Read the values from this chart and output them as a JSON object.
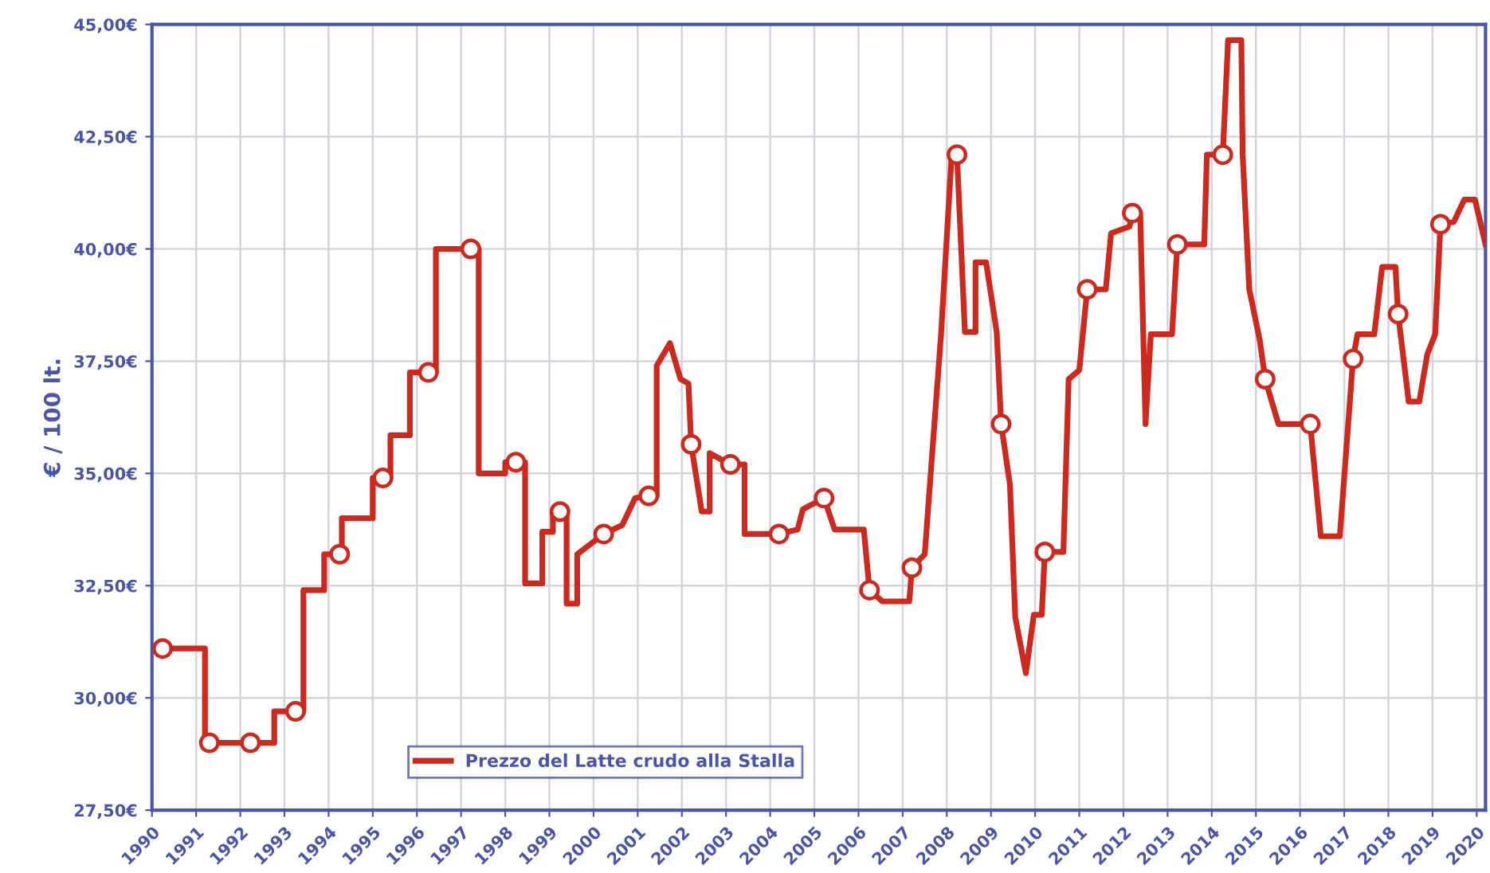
{
  "chart_data": {
    "type": "line",
    "ylabel": "€ / 100 lt.",
    "xlim": [
      1990,
      2020.2
    ],
    "ylim": [
      27.5,
      45
    ],
    "xticks": [
      {
        "value": 1990,
        "label": "1990"
      },
      {
        "value": 1991,
        "label": "1991"
      },
      {
        "value": 1992,
        "label": "1992"
      },
      {
        "value": 1993,
        "label": "1993"
      },
      {
        "value": 1994,
        "label": "1994"
      },
      {
        "value": 1995,
        "label": "1995"
      },
      {
        "value": 1996,
        "label": "1996"
      },
      {
        "value": 1997,
        "label": "1997"
      },
      {
        "value": 1998,
        "label": "1998"
      },
      {
        "value": 1999,
        "label": "1999"
      },
      {
        "value": 2000,
        "label": "2000"
      },
      {
        "value": 2001,
        "label": "2001"
      },
      {
        "value": 2002,
        "label": "2002"
      },
      {
        "value": 2003,
        "label": "2003"
      },
      {
        "value": 2004,
        "label": "2004"
      },
      {
        "value": 2005,
        "label": "2005"
      },
      {
        "value": 2006,
        "label": "2006"
      },
      {
        "value": 2007,
        "label": "2007"
      },
      {
        "value": 2008,
        "label": "2008"
      },
      {
        "value": 2009,
        "label": "2009"
      },
      {
        "value": 2010,
        "label": "2010"
      },
      {
        "value": 2011,
        "label": "2011"
      },
      {
        "value": 2012,
        "label": "2012"
      },
      {
        "value": 2013,
        "label": "2013"
      },
      {
        "value": 2014,
        "label": "2014"
      },
      {
        "value": 2015,
        "label": "2015"
      },
      {
        "value": 2016,
        "label": "2016"
      },
      {
        "value": 2017,
        "label": "2017"
      },
      {
        "value": 2018,
        "label": "2018"
      },
      {
        "value": 2019,
        "label": "2019"
      },
      {
        "value": 2020,
        "label": "2020"
      }
    ],
    "yticks": [
      {
        "value": 27.5,
        "label": "27,50€"
      },
      {
        "value": 30,
        "label": "30,00€"
      },
      {
        "value": 32.5,
        "label": "32,50€"
      },
      {
        "value": 35,
        "label": "35,00€"
      },
      {
        "value": 37.5,
        "label": "37,50€"
      },
      {
        "value": 40,
        "label": "40,00€"
      },
      {
        "value": 42.5,
        "label": "42,50€"
      },
      {
        "value": 45,
        "label": "45,00€"
      }
    ],
    "grid": true,
    "legend": "bottom",
    "line_style": "solid",
    "series": [
      {
        "name": "Prezzo del Latte crudo alla Stalla",
        "color": "#cc2a1e",
        "marker": "none",
        "x": [
          1990.24,
          1991.2,
          1991.2,
          1992.77,
          1992.77,
          1993.43,
          1993.43,
          1993.9,
          1993.9,
          1994.3,
          1994.3,
          1995.0,
          1995.0,
          1995.4,
          1995.4,
          1995.84,
          1995.84,
          1996.43,
          1996.43,
          1997.4,
          1997.4,
          1998.0,
          1998.0,
          1998.45,
          1998.45,
          1998.84,
          1998.84,
          1999.08,
          1999.08,
          1999.39,
          1999.39,
          1999.63,
          1999.63,
          2000.23,
          2000.65,
          2000.94,
          2001.25,
          2001.43,
          2001.43,
          2001.73,
          2001.97,
          2002.15,
          2002.21,
          2002.45,
          2002.63,
          2002.63,
          2003.1,
          2003.42,
          2003.42,
          2004.2,
          2004.62,
          2004.74,
          2005.22,
          2005.46,
          2006.12,
          2006.25,
          2006.54,
          2007.15,
          2007.21,
          2007.5,
          2007.87,
          2008.11,
          2008.23,
          2008.41,
          2008.65,
          2008.65,
          2008.89,
          2009.13,
          2009.23,
          2009.43,
          2009.55,
          2009.79,
          2009.97,
          2010.15,
          2010.22,
          2010.64,
          2010.76,
          2011.0,
          2011.18,
          2011.6,
          2011.72,
          2012.14,
          2012.2,
          2012.38,
          2012.5,
          2012.62,
          2013.1,
          2013.22,
          2013.83,
          2013.89,
          2014.25,
          2014.37,
          2014.67,
          2014.7,
          2014.85,
          2015.09,
          2015.21,
          2015.51,
          2016.23,
          2016.47,
          2016.9,
          2017.2,
          2017.3,
          2017.68,
          2017.86,
          2018.16,
          2018.22,
          2018.46,
          2018.7,
          2018.88,
          2019.06,
          2019.18,
          2019.48,
          2019.72,
          2019.96,
          2020.2
        ],
        "values": [
          31.1,
          31.1,
          29.0,
          29.0,
          29.7,
          29.7,
          32.4,
          32.4,
          33.2,
          33.2,
          34.0,
          34.0,
          34.9,
          34.9,
          35.85,
          35.85,
          37.25,
          37.25,
          40.0,
          40.0,
          35.0,
          35.0,
          35.25,
          35.25,
          32.55,
          32.55,
          33.7,
          33.7,
          34.15,
          34.15,
          32.1,
          32.1,
          33.2,
          33.65,
          33.85,
          34.45,
          34.5,
          34.5,
          37.4,
          37.9,
          37.1,
          37.0,
          35.65,
          34.15,
          34.15,
          35.45,
          35.2,
          35.2,
          33.65,
          33.65,
          33.75,
          34.2,
          34.45,
          33.75,
          33.75,
          32.4,
          32.15,
          32.15,
          32.9,
          33.2,
          38.1,
          42.1,
          42.1,
          38.15,
          38.15,
          39.7,
          39.7,
          38.15,
          36.1,
          34.75,
          31.8,
          30.55,
          31.85,
          31.85,
          33.25,
          33.25,
          37.1,
          37.3,
          39.1,
          39.1,
          40.35,
          40.5,
          40.8,
          40.8,
          36.1,
          38.1,
          38.1,
          40.1,
          40.1,
          42.1,
          42.1,
          44.65,
          44.65,
          42.1,
          39.1,
          37.95,
          37.1,
          36.1,
          36.1,
          33.6,
          33.6,
          37.55,
          38.1,
          38.1,
          39.6,
          39.6,
          38.55,
          36.6,
          36.6,
          37.65,
          38.1,
          40.55,
          40.6,
          41.1,
          41.1,
          40.1
        ]
      },
      {
        "color": "#cc2a1e",
        "type": "scatter",
        "marker": "circle",
        "x": [
          1990.24,
          1991.3,
          1992.23,
          1993.25,
          1994.25,
          1995.23,
          1996.26,
          1997.22,
          1998.24,
          1999.24,
          2000.23,
          2001.25,
          2002.21,
          2003.1,
          2004.2,
          2005.22,
          2006.25,
          2007.21,
          2008.23,
          2009.23,
          2010.22,
          2011.18,
          2012.2,
          2013.22,
          2014.25,
          2015.21,
          2016.23,
          2017.2,
          2018.22,
          2019.18
        ],
        "values": [
          31.1,
          29.0,
          29.0,
          29.7,
          33.2,
          34.9,
          37.25,
          40.0,
          35.25,
          34.15,
          33.65,
          34.5,
          35.65,
          35.2,
          33.65,
          34.45,
          32.4,
          32.9,
          42.1,
          36.1,
          33.25,
          39.1,
          40.8,
          40.1,
          42.1,
          37.1,
          36.1,
          37.55,
          38.55,
          40.55
        ]
      }
    ]
  }
}
